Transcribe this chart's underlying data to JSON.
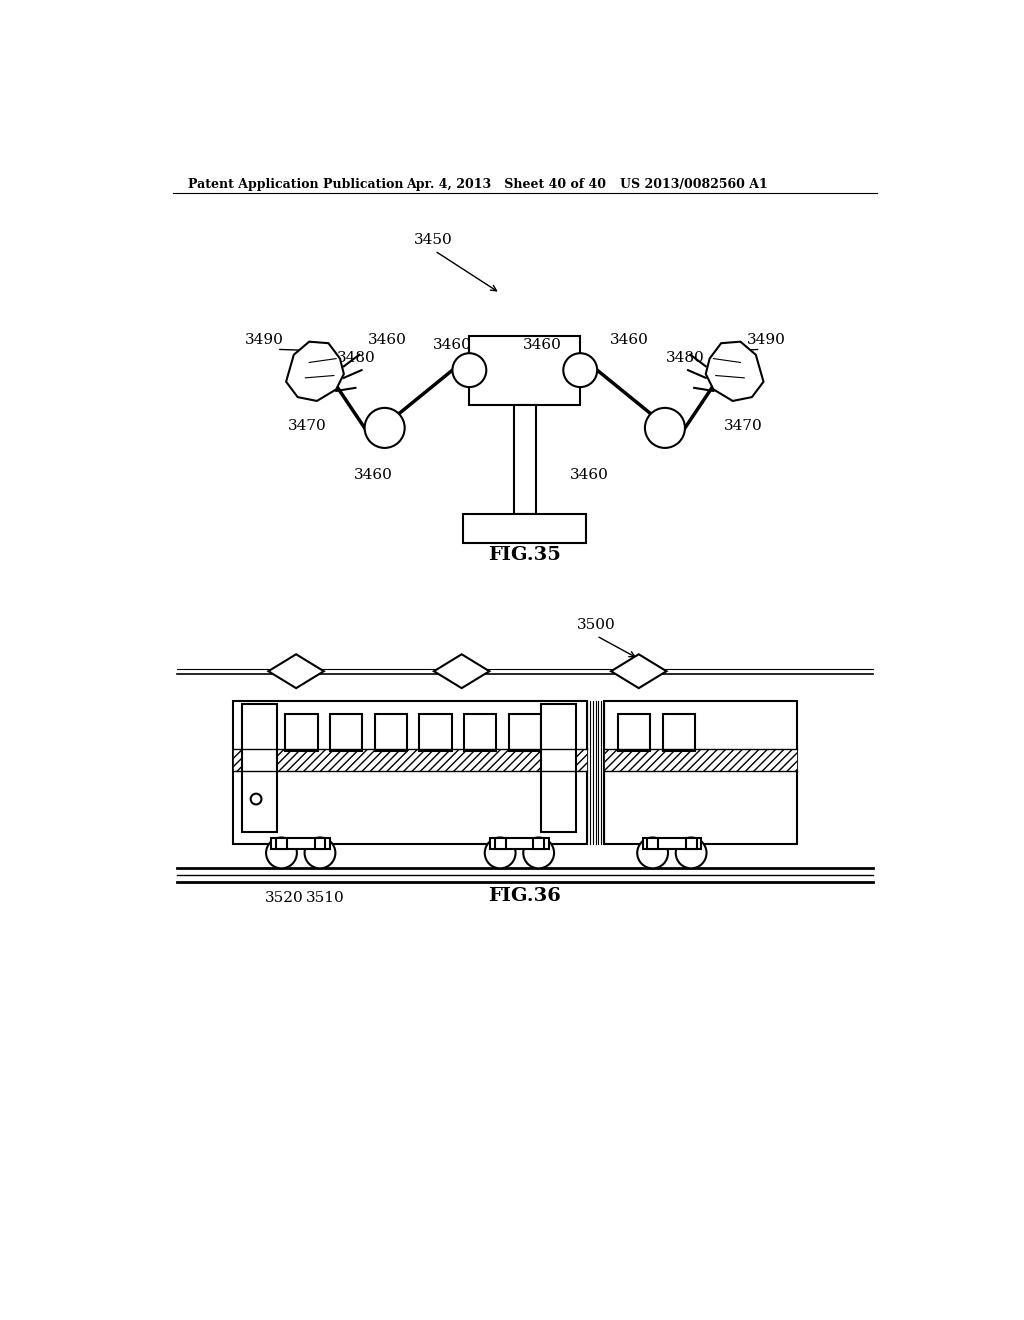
{
  "header_left": "Patent Application Publication",
  "header_mid": "Apr. 4, 2013   Sheet 40 of 40",
  "header_right": "US 2013/0082560 A1",
  "fig35_label": "FIG.35",
  "fig36_label": "FIG.36",
  "bg_color": "#ffffff",
  "line_color": "#000000"
}
